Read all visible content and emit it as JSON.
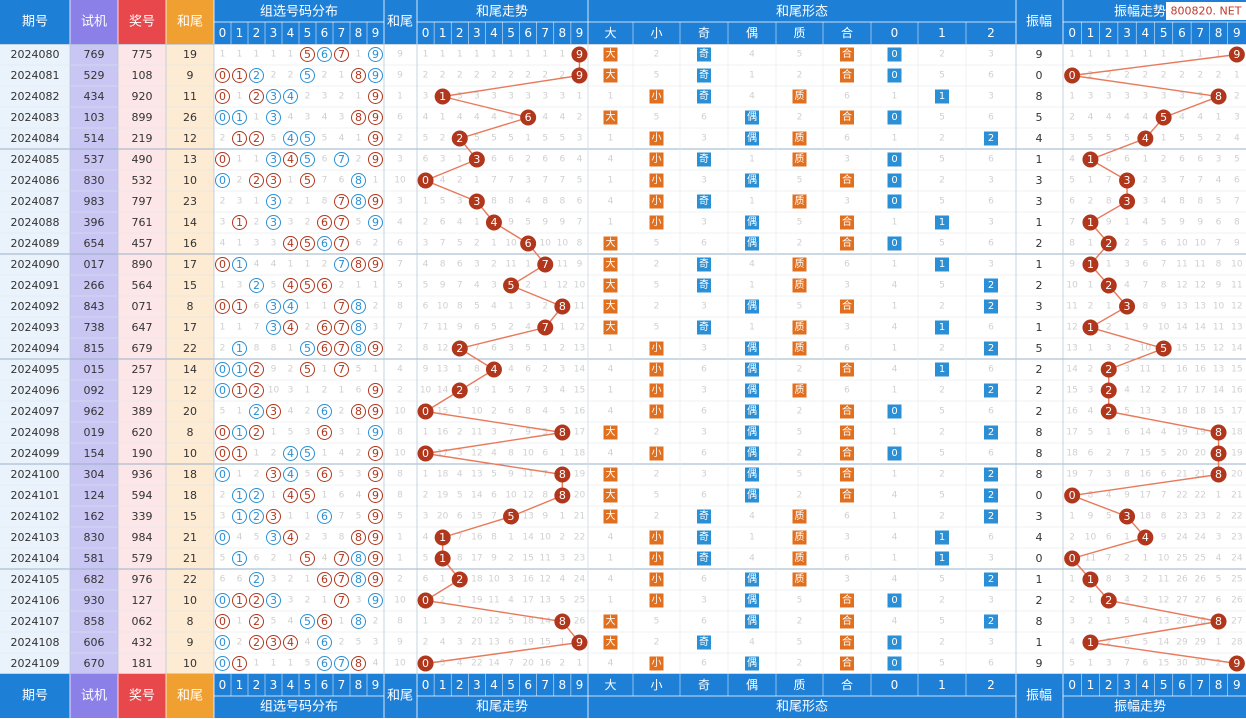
{
  "header": {
    "col_issue": "期号",
    "col_test": "试机",
    "col_prize": "奖号",
    "col_sum_tail": "和尾",
    "group_digit_dist": "组选号码分布",
    "col_hewei": "和尾",
    "group_tail_trend": "和尾走势",
    "group_tail_form": "和尾形态",
    "col_amplitude": "振幅",
    "group_amp_trend": "振幅走势",
    "digits": [
      "0",
      "1",
      "2",
      "3",
      "4",
      "5",
      "6",
      "7",
      "8",
      "9"
    ],
    "form_labels": [
      "大",
      "小",
      "奇",
      "偶",
      "质",
      "合",
      "0",
      "1",
      "2"
    ]
  },
  "watermark": "800820. NET",
  "colors": {
    "header_blue": "#1e7fd6",
    "issue_col_bg": "#eaf3fb",
    "test_col_bg": "#c9c6f4",
    "test_header": "#8b7fe8",
    "prize_col_bg": "#fde6e8",
    "prize_header": "#e8474b",
    "sum_col_bg": "#fdebd3",
    "sum_header": "#f0a030",
    "ball_red": "#b0361c",
    "line_red": "#e8795a",
    "box_orange": "#e07020",
    "box_blue": "#2a8fd4"
  },
  "rows": [
    {
      "issue": "2024080",
      "test": "769",
      "prize": "775",
      "sum": "19",
      "tail": 9,
      "amp": 9
    },
    {
      "issue": "2024081",
      "test": "529",
      "prize": "108",
      "sum": "9",
      "tail": 9,
      "amp": 0
    },
    {
      "issue": "2024082",
      "test": "434",
      "prize": "920",
      "sum": "11",
      "tail": 1,
      "amp": 8
    },
    {
      "issue": "2024083",
      "test": "103",
      "prize": "899",
      "sum": "26",
      "tail": 6,
      "amp": 5
    },
    {
      "issue": "2024084",
      "test": "514",
      "prize": "219",
      "sum": "12",
      "tail": 2,
      "amp": 4
    },
    {
      "issue": "2024085",
      "test": "537",
      "prize": "490",
      "sum": "13",
      "tail": 3,
      "amp": 1
    },
    {
      "issue": "2024086",
      "test": "830",
      "prize": "532",
      "sum": "10",
      "tail": 0,
      "amp": 3
    },
    {
      "issue": "2024087",
      "test": "983",
      "prize": "797",
      "sum": "23",
      "tail": 3,
      "amp": 3
    },
    {
      "issue": "2024088",
      "test": "396",
      "prize": "761",
      "sum": "14",
      "tail": 4,
      "amp": 1
    },
    {
      "issue": "2024089",
      "test": "654",
      "prize": "457",
      "sum": "16",
      "tail": 6,
      "amp": 2
    },
    {
      "issue": "2024090",
      "test": "017",
      "prize": "890",
      "sum": "17",
      "tail": 7,
      "amp": 1
    },
    {
      "issue": "2024091",
      "test": "266",
      "prize": "564",
      "sum": "15",
      "tail": 5,
      "amp": 2
    },
    {
      "issue": "2024092",
      "test": "843",
      "prize": "071",
      "sum": "8",
      "tail": 8,
      "amp": 3
    },
    {
      "issue": "2024093",
      "test": "738",
      "prize": "647",
      "sum": "17",
      "tail": 7,
      "amp": 1
    },
    {
      "issue": "2024094",
      "test": "815",
      "prize": "679",
      "sum": "22",
      "tail": 2,
      "amp": 5
    },
    {
      "issue": "2024095",
      "test": "015",
      "prize": "257",
      "sum": "14",
      "tail": 4,
      "amp": 2
    },
    {
      "issue": "2024096",
      "test": "092",
      "prize": "129",
      "sum": "12",
      "tail": 2,
      "amp": 2
    },
    {
      "issue": "2024097",
      "test": "962",
      "prize": "389",
      "sum": "20",
      "tail": 0,
      "amp": 2
    },
    {
      "issue": "2024098",
      "test": "019",
      "prize": "620",
      "sum": "8",
      "tail": 8,
      "amp": 8
    },
    {
      "issue": "2024099",
      "test": "154",
      "prize": "190",
      "sum": "10",
      "tail": 0,
      "amp": 8
    },
    {
      "issue": "2024100",
      "test": "304",
      "prize": "936",
      "sum": "18",
      "tail": 8,
      "amp": 8
    },
    {
      "issue": "2024101",
      "test": "124",
      "prize": "594",
      "sum": "18",
      "tail": 8,
      "amp": 0
    },
    {
      "issue": "2024102",
      "test": "162",
      "prize": "339",
      "sum": "15",
      "tail": 5,
      "amp": 3
    },
    {
      "issue": "2024103",
      "test": "830",
      "prize": "984",
      "sum": "21",
      "tail": 1,
      "amp": 4
    },
    {
      "issue": "2024104",
      "test": "581",
      "prize": "579",
      "sum": "21",
      "tail": 1,
      "amp": 0
    },
    {
      "issue": "2024105",
      "test": "682",
      "prize": "976",
      "sum": "22",
      "tail": 2,
      "amp": 1
    },
    {
      "issue": "2024106",
      "test": "930",
      "prize": "127",
      "sum": "10",
      "tail": 0,
      "amp": 2
    },
    {
      "issue": "2024107",
      "test": "858",
      "prize": "062",
      "sum": "8",
      "tail": 8,
      "amp": 8
    },
    {
      "issue": "2024108",
      "test": "606",
      "prize": "432",
      "sum": "9",
      "tail": 9,
      "amp": 1
    },
    {
      "issue": "2024109",
      "test": "670",
      "prize": "181",
      "sum": "10",
      "tail": 0,
      "amp": 9
    }
  ]
}
